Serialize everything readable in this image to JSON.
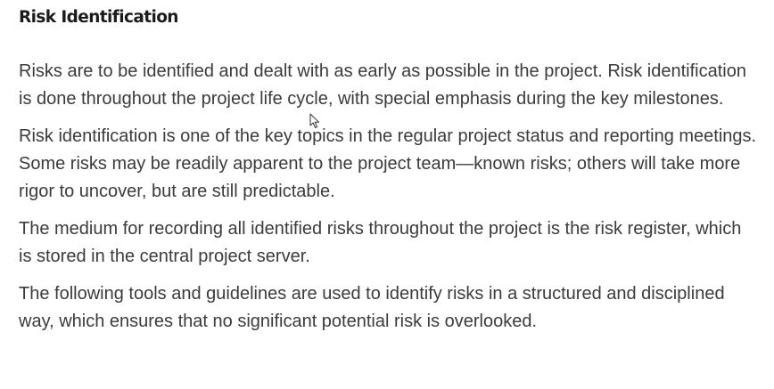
{
  "section": {
    "title": "Risk Identification",
    "paragraphs": [
      "Risks are to be identified and dealt with as early as possible in the project. Risk identification is done throughout the project life cycle, with special emphasis during the key milestones.",
      "Risk identification is one of the key topics in the regular project status and reporting meetings. Some risks may be readily apparent to the project team—known risks; others will take more rigor to uncover, but are still predictable.",
      "The medium for recording all identified risks throughout the project is the risk register, which is stored in the central project server.",
      "The following tools and guidelines are used to identify risks in a structured and disciplined way, which ensures that no significant potential risk is overlooked."
    ]
  },
  "cursor": {
    "icon": "mouse-pointer-icon"
  }
}
